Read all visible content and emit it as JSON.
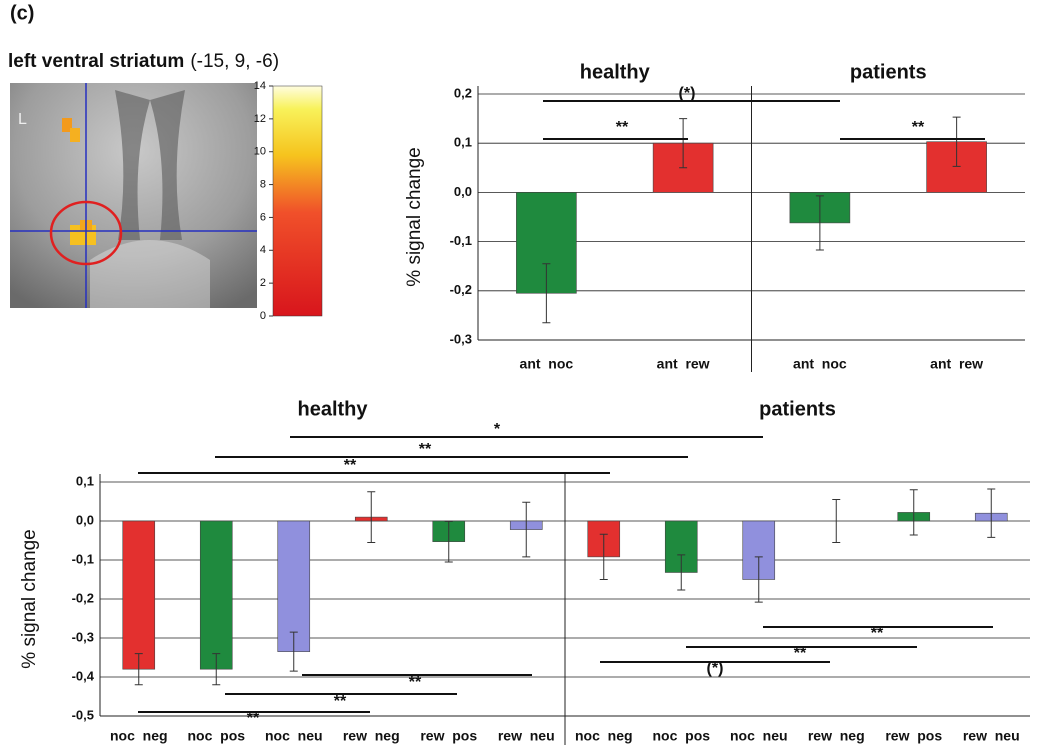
{
  "panel_label": "(c)",
  "region": {
    "name": "left ventral striatum",
    "coordinates": "(-15, 9, -6)"
  },
  "brain_image": {
    "orientation_label": "L",
    "colorbar": {
      "lim": [
        0,
        14
      ],
      "ticks": [
        0,
        2,
        4,
        6,
        8,
        10,
        12,
        14
      ]
    }
  },
  "chart_data": [
    {
      "type": "bar",
      "ylabel": "% signal change",
      "categories": [
        "ant  noc",
        "ant  rew"
      ],
      "colors": [
        "#1f8a3e",
        "#e3302f"
      ],
      "series": [
        {
          "name": "healthy",
          "values": [
            -0.205,
            0.1
          ],
          "errors": [
            0.06,
            0.05
          ]
        },
        {
          "name": "patients",
          "values": [
            -0.062,
            0.103
          ],
          "errors": [
            0.055,
            0.05
          ]
        }
      ],
      "ylim": [
        -0.3,
        0.2
      ],
      "yticks": [
        {
          "value": -0.3,
          "label": "-0,3"
        },
        {
          "value": -0.2,
          "label": "-0,2"
        },
        {
          "value": -0.1,
          "label": "-0,1"
        },
        {
          "value": 0,
          "label": "0,0"
        },
        {
          "value": 0.1,
          "label": "0,1"
        },
        {
          "value": 0.2,
          "label": "0,2"
        }
      ],
      "grid": true,
      "annotations": [
        "(*)",
        "**",
        "**"
      ]
    },
    {
      "type": "bar",
      "ylabel": "% signal change",
      "categories": [
        "noc  neg",
        "noc  pos",
        "noc  neu",
        "rew  neg",
        "rew  pos",
        "rew  neu"
      ],
      "colors": [
        "#e3302f",
        "#1f8a3e",
        "#9090dd",
        "#e3302f",
        "#1f8a3e",
        "#9090dd"
      ],
      "series": [
        {
          "name": "healthy",
          "values": [
            -0.38,
            -0.38,
            -0.335,
            0.01,
            -0.053,
            -0.022
          ],
          "errors": [
            0.04,
            0.04,
            0.05,
            0.065,
            0.052,
            0.07
          ]
        },
        {
          "name": "patients",
          "values": [
            -0.092,
            -0.132,
            -0.15,
            0,
            0.022,
            0.02
          ],
          "errors": [
            0.058,
            0.045,
            0.058,
            0.055,
            0.058,
            0.062
          ]
        }
      ],
      "ylim": [
        -0.5,
        0.1
      ],
      "yticks": [
        {
          "value": -0.5,
          "label": "-0,5"
        },
        {
          "value": -0.4,
          "label": "-0,4"
        },
        {
          "value": -0.3,
          "label": "-0,3"
        },
        {
          "value": -0.2,
          "label": "-0,2"
        },
        {
          "value": -0.1,
          "label": "-0,1"
        },
        {
          "value": 0,
          "label": "0,0"
        },
        {
          "value": 0.1,
          "label": "0,1"
        }
      ],
      "grid": true,
      "annotations": [
        "*",
        "**",
        "**",
        "**",
        "**",
        "**",
        "**",
        "**",
        "(*)"
      ]
    }
  ]
}
